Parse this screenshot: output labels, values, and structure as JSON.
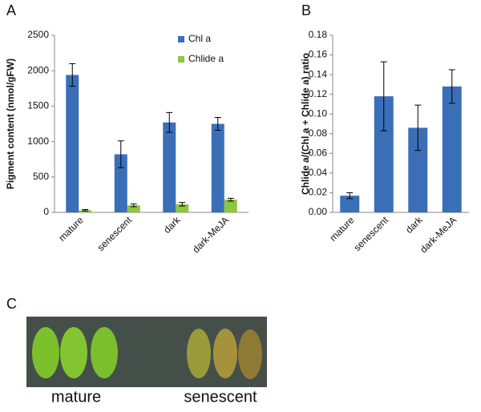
{
  "chart_data": [
    {
      "type": "bar",
      "panel": "A",
      "ylabel": "Pigment content (nmol/gFW)",
      "categories": [
        "mature",
        "senescent",
        "dark",
        "dark-MeJA"
      ],
      "series": [
        {
          "name": "Chl a",
          "color": "#3a6fb8",
          "values": [
            1940,
            820,
            1270,
            1250
          ],
          "errors": [
            160,
            190,
            140,
            90
          ]
        },
        {
          "name": "Chlide a",
          "color": "#8dc63f",
          "values": [
            30,
            100,
            115,
            180
          ],
          "errors": [
            10,
            20,
            25,
            20
          ]
        }
      ],
      "ylim": [
        0,
        2500
      ],
      "yticks": [
        0,
        500,
        1000,
        1500,
        2000,
        2500
      ],
      "legend": "top-right"
    },
    {
      "type": "bar",
      "panel": "B",
      "ylabel": "Chlide a/(Chl a + Chlide a) ratio",
      "categories": [
        "mature",
        "senescent",
        "dark",
        "dark-MeJA"
      ],
      "values": [
        0.017,
        0.118,
        0.086,
        0.128
      ],
      "errors": [
        0.003,
        0.035,
        0.023,
        0.017
      ],
      "color": "#3a6fb8",
      "ylim": [
        0,
        0.18
      ],
      "yticks": [
        {
          "value": 0,
          "label": "0.00"
        },
        0.02,
        0.04,
        0.06,
        0.08,
        {
          "value": 0.1,
          "label": "0.10"
        },
        0.12,
        0.14,
        0.16,
        0.18
      ]
    }
  ],
  "panel_c": {
    "label": "C",
    "captions": [
      "mature",
      "senescent"
    ]
  }
}
